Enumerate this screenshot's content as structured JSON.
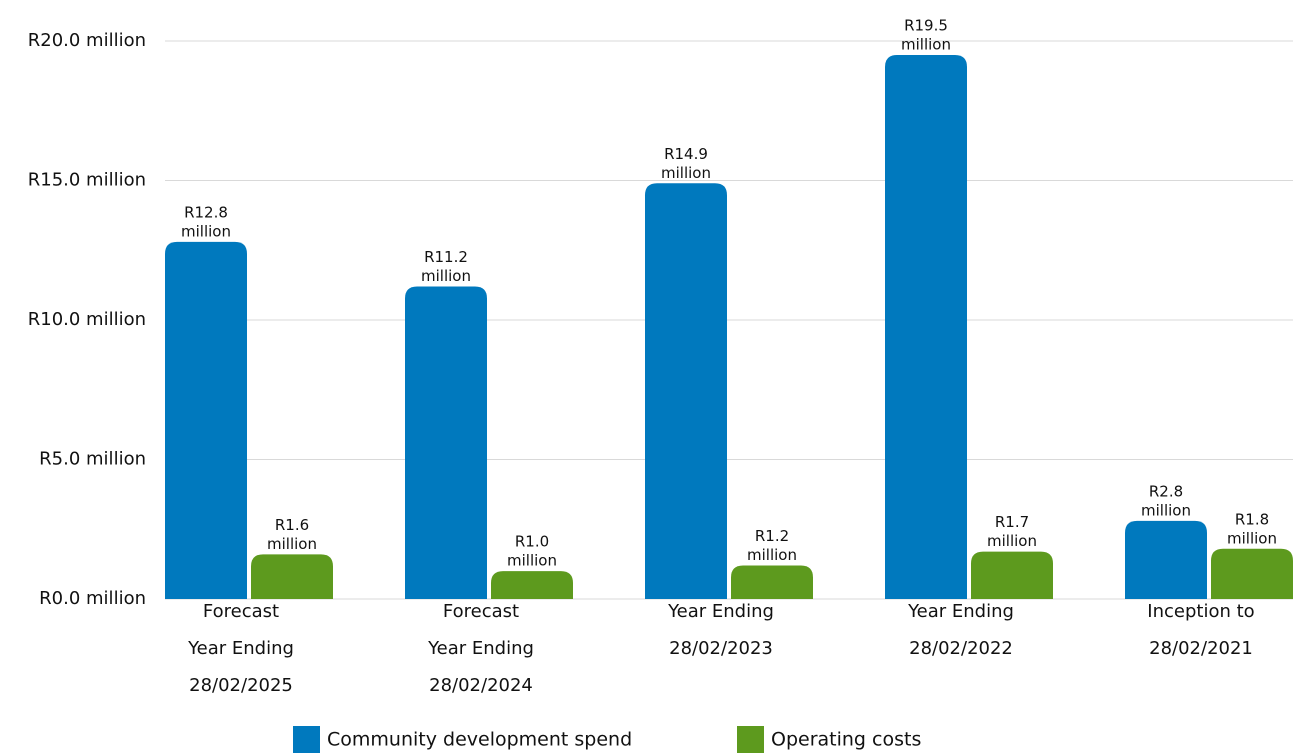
{
  "chart_data": {
    "type": "bar",
    "categories": [
      [
        "Forecast",
        "Year Ending",
        "28/02/2025"
      ],
      [
        "Forecast",
        "Year Ending",
        "28/02/2024"
      ],
      [
        "Year Ending",
        "28/02/2023"
      ],
      [
        "Year Ending",
        "28/02/2022"
      ],
      [
        "Inception to",
        "28/02/2021"
      ]
    ],
    "series": [
      {
        "name": "Community development spend",
        "color": "#0079be",
        "values": [
          12.8,
          11.2,
          14.9,
          19.5,
          2.8
        ],
        "value_labels": [
          [
            "R12.8",
            "million"
          ],
          [
            "R11.2",
            "million"
          ],
          [
            "R14.9",
            "million"
          ],
          [
            "R19.5",
            "million"
          ],
          [
            "R2.8",
            "million"
          ]
        ]
      },
      {
        "name": "Operating costs",
        "color": "#5d9a1e",
        "values": [
          1.6,
          1.0,
          1.2,
          1.7,
          1.8
        ],
        "value_labels": [
          [
            "R1.6",
            "million"
          ],
          [
            "R1.0",
            "million"
          ],
          [
            "R1.2",
            "million"
          ],
          [
            "R1.7",
            "million"
          ],
          [
            "R1.8",
            "million"
          ]
        ]
      }
    ],
    "ylim": [
      0,
      20
    ],
    "yticks": [
      {
        "value": 0,
        "label": "R0.0 million"
      },
      {
        "value": 5,
        "label": "R5.0 million"
      },
      {
        "value": 10,
        "label": "R10.0 million"
      },
      {
        "value": 15,
        "label": "R15.0 million"
      },
      {
        "value": 20,
        "label": "R20.0 million"
      }
    ],
    "grid": true
  }
}
